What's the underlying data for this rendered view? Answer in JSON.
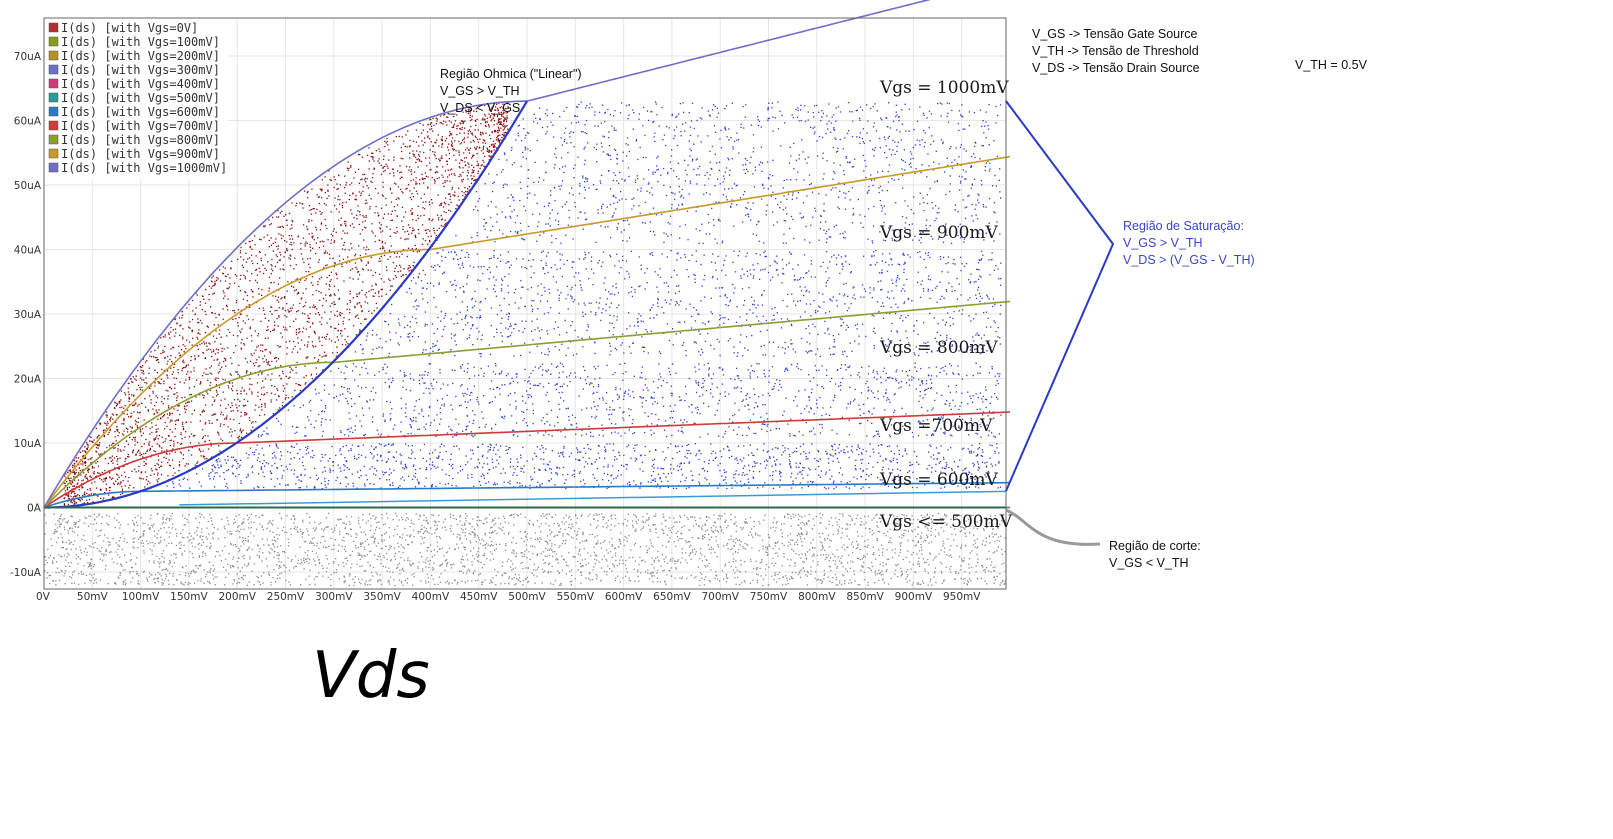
{
  "chart_data": {
    "type": "line",
    "title": "",
    "xlabel": "Vds",
    "ylabel": "",
    "x_unit": "mV",
    "xlim": [
      0,
      1000
    ],
    "ylim": [
      -13,
      75
    ],
    "x_ticks": [
      "0V",
      "50mV",
      "100mV",
      "150mV",
      "200mV",
      "250mV",
      "300mV",
      "350mV",
      "400mV",
      "450mV",
      "500mV",
      "550mV",
      "600mV",
      "650mV",
      "700mV",
      "750mV",
      "800mV",
      "850mV",
      "900mV",
      "950mV"
    ],
    "y_ticks": [
      "-10uA",
      "0A",
      "10uA",
      "20uA",
      "30uA",
      "40uA",
      "50uA",
      "60uA",
      "70uA"
    ],
    "grid": true,
    "legend_position": "top-left",
    "series": [
      {
        "name": "I(ds) [with Vgs=0V]",
        "color": "#b03030",
        "vgs": 0,
        "isat": 0
      },
      {
        "name": "I(ds) [with Vgs=100mV]",
        "color": "#8a9a20",
        "vgs": 100,
        "isat": 0
      },
      {
        "name": "I(ds) [with Vgs=200mV]",
        "color": "#b8902a",
        "vgs": 200,
        "isat": 0
      },
      {
        "name": "I(ds) [with Vgs=300mV]",
        "color": "#6f6fc8",
        "vgs": 300,
        "isat": 0
      },
      {
        "name": "I(ds) [with Vgs=400mV]",
        "color": "#d03a7a",
        "vgs": 400,
        "isat": 0
      },
      {
        "name": "I(ds) [with Vgs=500mV]",
        "color": "#2a9a9a",
        "vgs": 500,
        "isat": 0
      },
      {
        "name": "I(ds) [with Vgs=600mV]",
        "color": "#2a7ac8",
        "vgs": 600,
        "isat": 2.5
      },
      {
        "name": "I(ds) [with Vgs=700mV]",
        "color": "#d03a3a",
        "vgs": 700,
        "isat": 10
      },
      {
        "name": "I(ds) [with Vgs=800mV]",
        "color": "#8aa030",
        "vgs": 800,
        "isat": 22.5
      },
      {
        "name": "I(ds) [with Vgs=900mV]",
        "color": "#c89a2a",
        "vgs": 900,
        "isat": 40
      },
      {
        "name": "I(ds) [with Vgs=1000mV]",
        "color": "#6f6fc8",
        "vgs": 1000,
        "isat": 63
      }
    ],
    "annotations": {
      "curve_labels": [
        "Vgs = 1000mV",
        "Vgs = 900mV",
        "Vgs = 800mV",
        "Vgs =700mV",
        "Vgs = 600mV",
        "Vgs <= 500mV"
      ],
      "ohmic": [
        "Região Ohmica (\"Linear\")",
        "V_GS > V_TH",
        "V_DS < V_GS"
      ],
      "saturation": [
        "Região de Saturação:",
        "V_GS > V_TH",
        "V_DS > (V_GS - V_TH)"
      ],
      "cutoff": [
        "Região de corte:",
        "V_GS < V_TH"
      ],
      "definitions": [
        "V_GS -> Tensão Gate Source",
        "V_TH -> Tensão de Threshold",
        "V_DS -> Tensão Drain Source"
      ],
      "vth_value": "V_TH = 0.5V"
    },
    "colors": {
      "ohmic_fill": "#8b0e0e",
      "saturation_fill": "#2b3fd0",
      "cutoff_fill": "#8c8c8c",
      "boundary": "#2a3ac8"
    }
  }
}
